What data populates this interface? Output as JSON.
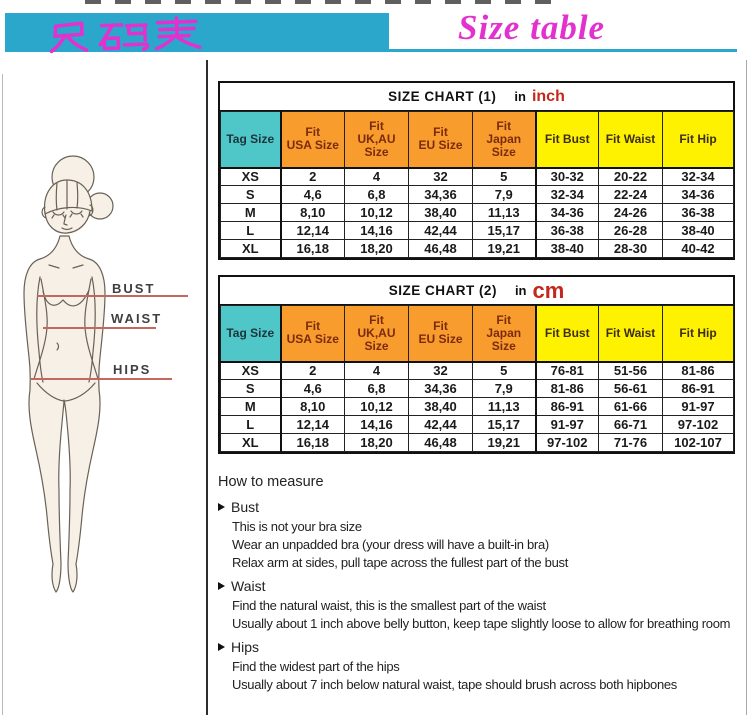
{
  "banner": {
    "chinese_title": "尺码表",
    "english_title": "Size table"
  },
  "figure_labels": {
    "bust": "BUST",
    "waist": "WAIST",
    "hips": "HIPS"
  },
  "charts": [
    {
      "title": "SIZE CHART (1)",
      "unit_prefix": "in",
      "unit": "inch",
      "columns": [
        "Tag Size",
        "Fit\nUSA Size",
        "Fit\nUK,AU\nSize",
        "Fit\nEU Size",
        "Fit\nJapan\nSize",
        "Fit Bust",
        "Fit Waist",
        "Fit Hip"
      ],
      "rows": [
        [
          "XS",
          "2",
          "4",
          "32",
          "5",
          "30-32",
          "20-22",
          "32-34"
        ],
        [
          "S",
          "4,6",
          "6,8",
          "34,36",
          "7,9",
          "32-34",
          "22-24",
          "34-36"
        ],
        [
          "M",
          "8,10",
          "10,12",
          "38,40",
          "11,13",
          "34-36",
          "24-26",
          "36-38"
        ],
        [
          "L",
          "12,14",
          "14,16",
          "42,44",
          "15,17",
          "36-38",
          "26-28",
          "38-40"
        ],
        [
          "XL",
          "16,18",
          "18,20",
          "46,48",
          "19,21",
          "38-40",
          "28-30",
          "40-42"
        ]
      ]
    },
    {
      "title": "SIZE CHART (2)",
      "unit_prefix": "in",
      "unit": "cm",
      "columns": [
        "Tag Size",
        "Fit\nUSA Size",
        "Fit\nUK,AU\nSize",
        "Fit\nEU Size",
        "Fit\nJapan\nSize",
        "Fit Bust",
        "Fit Waist",
        "Fit Hip"
      ],
      "rows": [
        [
          "XS",
          "2",
          "4",
          "32",
          "5",
          "76-81",
          "51-56",
          "81-86"
        ],
        [
          "S",
          "4,6",
          "6,8",
          "34,36",
          "7,9",
          "81-86",
          "56-61",
          "86-91"
        ],
        [
          "M",
          "8,10",
          "10,12",
          "38,40",
          "11,13",
          "86-91",
          "61-66",
          "91-97"
        ],
        [
          "L",
          "12,14",
          "14,16",
          "42,44",
          "15,17",
          "91-97",
          "66-71",
          "97-102"
        ],
        [
          "XL",
          "16,18",
          "18,20",
          "46,48",
          "19,21",
          "97-102",
          "71-76",
          "102-107"
        ]
      ]
    }
  ],
  "how_to_measure": {
    "heading": "How to measure",
    "sections": [
      {
        "label": "Bust",
        "lines": [
          "This is not your bra size",
          "Wear an unpadded bra (your dress will have a built-in bra)",
          "Relax arm at sides, pull tape across the fullest part of the bust"
        ]
      },
      {
        "label": "Waist",
        "lines": [
          "Find the natural waist, this is the smallest part of the waist",
          "Usually about 1 inch above belly button, keep tape slightly loose to allow for breathing room"
        ]
      },
      {
        "label": "Hips",
        "lines": [
          "Find the widest part of the hips",
          "Usually about 7 inch below natural waist, tape should brush across both hipbones"
        ]
      }
    ]
  },
  "colors": {
    "banner_teal": "#2AA7CA",
    "magenta": "#E231CE",
    "header_orange": "#F89C2D",
    "header_yellow": "#FFF200",
    "header_cyan": "#4FC7C9",
    "accent_red": "#C4271B",
    "pointer_line": "#C2685E"
  }
}
